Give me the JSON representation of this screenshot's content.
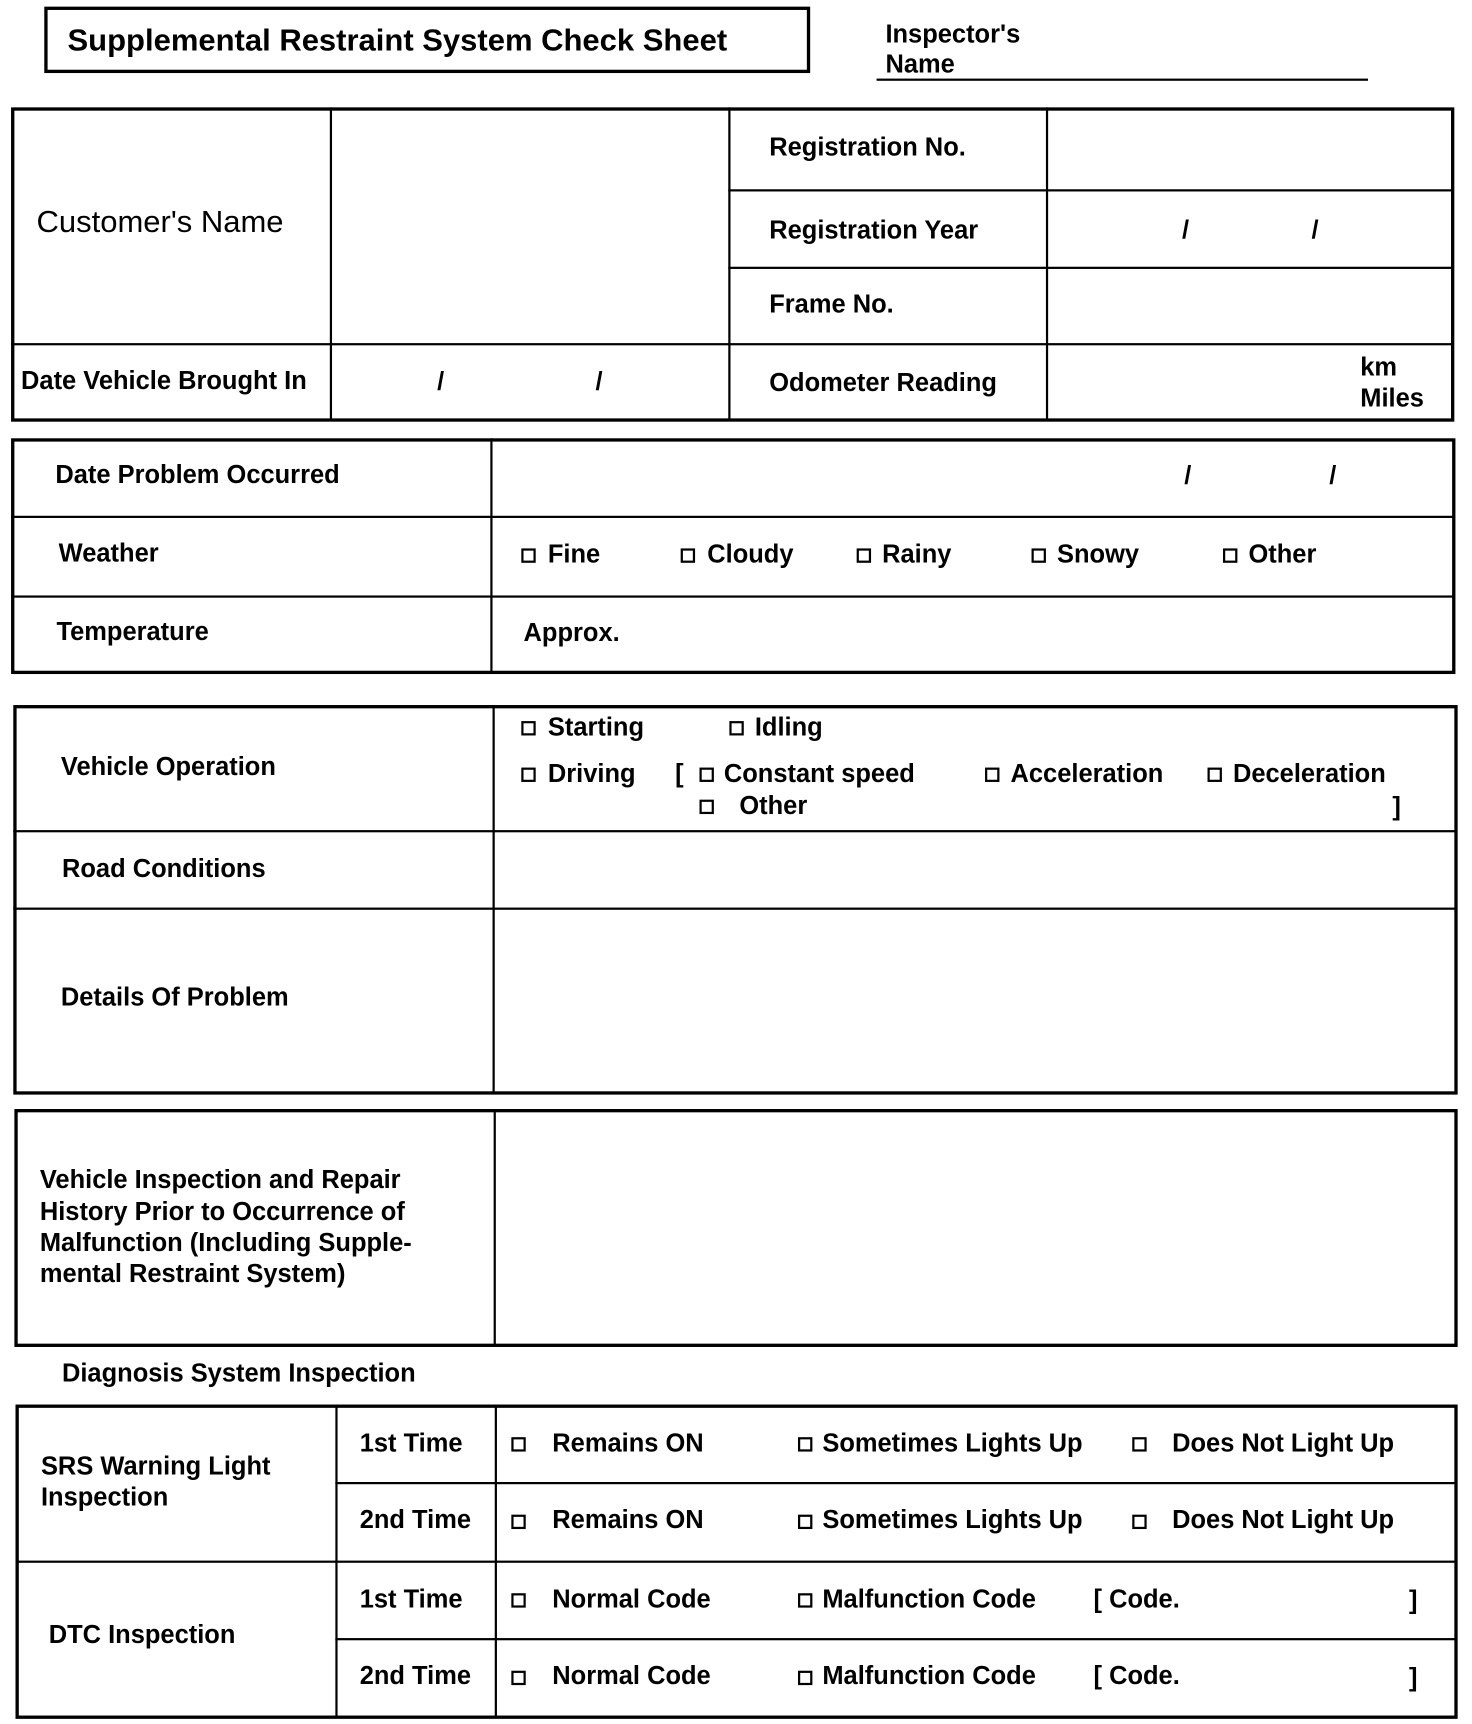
{
  "header": {
    "title": "Supplemental Restraint System Check Sheet",
    "inspector_line1": "Inspector's",
    "inspector_line2": "Name"
  },
  "vehicle": {
    "customer_name": "Customer's Name",
    "registration_no": "Registration No.",
    "registration_year": "Registration Year",
    "frame_no": "Frame No.",
    "date_brought_in": "Date Vehicle Brought In",
    "odometer": "Odometer Reading",
    "unit_km": "km",
    "unit_miles": "Miles",
    "slash": "/"
  },
  "problem": {
    "date_occurred": "Date Problem Occurred",
    "weather": "Weather",
    "weather_options": [
      "Fine",
      "Cloudy",
      "Rainy",
      "Snowy",
      "Other"
    ],
    "temperature": "Temperature",
    "approx": "Approx."
  },
  "operation": {
    "label": "Vehicle Operation",
    "starting": "Starting",
    "idling": "Idling",
    "driving": "Driving",
    "open_bracket": "[",
    "constant_speed": "Constant speed",
    "acceleration": "Acceleration",
    "deceleration": "Deceleration",
    "other": "Other",
    "close_bracket": "]",
    "road_conditions": "Road Conditions",
    "details": "Details Of Problem"
  },
  "history": {
    "lines": [
      "Vehicle Inspection and Repair",
      "History Prior to Occurrence of",
      "Malfunction (Including Supple-",
      "mental Restraint System)"
    ]
  },
  "diagnosis": {
    "title": "Diagnosis System Inspection",
    "srs_line1": "SRS Warning Light",
    "srs_line2": "Inspection",
    "dtc": "DTC Inspection",
    "first": "1st Time",
    "second": "2nd Time",
    "remains_on": "Remains ON",
    "sometimes": "Sometimes Lights Up",
    "does_not": "Does Not Light Up",
    "normal": "Normal Code",
    "malfunction": "Malfunction Code",
    "code": "[ Code.",
    "close": "]"
  }
}
